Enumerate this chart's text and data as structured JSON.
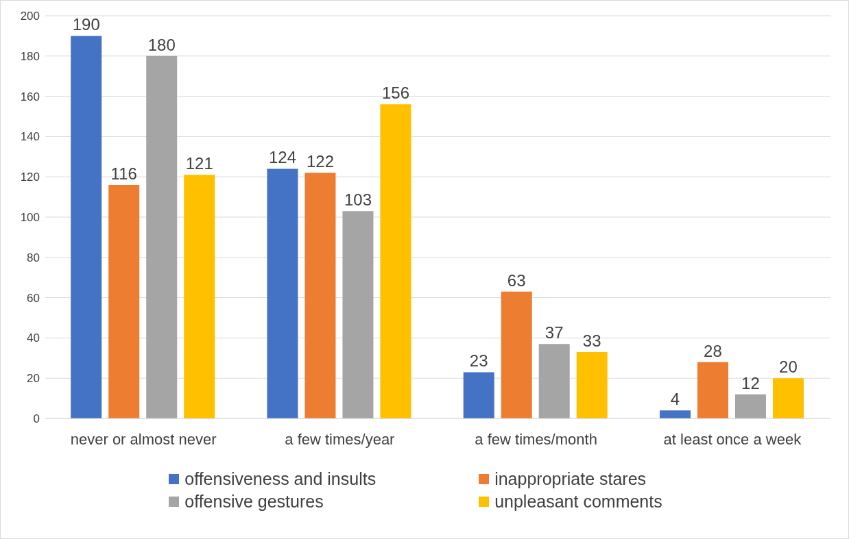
{
  "chart_data": {
    "type": "bar",
    "categories": [
      "never or almost never",
      "a few times/year",
      "a few times/month",
      "at least once a week"
    ],
    "series": [
      {
        "name": "offensiveness and insults",
        "color": "#4472c4",
        "values": [
          190,
          124,
          23,
          4
        ]
      },
      {
        "name": "inappropriate stares",
        "color": "#ed7d31",
        "values": [
          116,
          122,
          63,
          28
        ]
      },
      {
        "name": "offensive gestures",
        "color": "#a5a5a5",
        "values": [
          180,
          103,
          37,
          12
        ]
      },
      {
        "name": "unpleasant comments",
        "color": "#ffc000",
        "values": [
          121,
          156,
          33,
          20
        ]
      }
    ],
    "ylim": [
      0,
      200
    ],
    "yticks": [
      0,
      20,
      40,
      60,
      80,
      100,
      120,
      140,
      160,
      180,
      200
    ],
    "grid": "y",
    "legend": "bottom",
    "data_labels": true
  }
}
